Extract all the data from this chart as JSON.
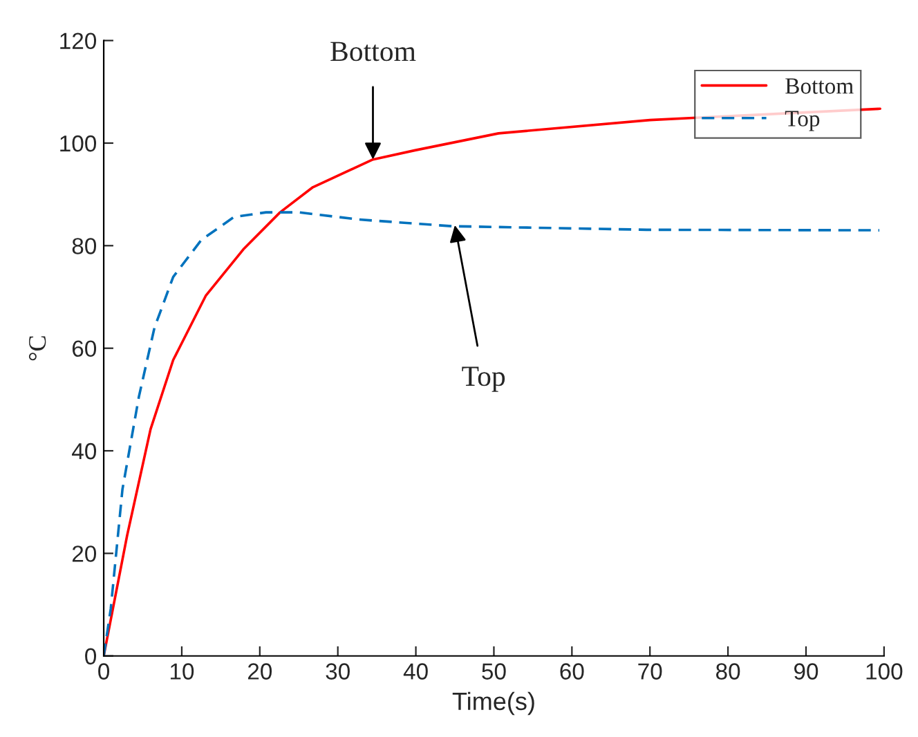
{
  "chart_data": {
    "type": "line",
    "xlabel": "Time(s)",
    "ylabel": "°C",
    "xlim": [
      0,
      100
    ],
    "ylim": [
      0,
      120
    ],
    "xticks": [
      0,
      10,
      20,
      30,
      40,
      50,
      60,
      70,
      80,
      90,
      100
    ],
    "yticks": [
      0,
      20,
      40,
      60,
      80,
      100,
      120
    ],
    "grid": false,
    "legend": "top right",
    "marker": "none",
    "series": [
      {
        "name": "Bottom",
        "color": "#ff0000",
        "line_style": "solid",
        "x": [
          0,
          3,
          6,
          8.9,
          13.1,
          17.9,
          22.6,
          26.8,
          34.5,
          39.9,
          50.6,
          70,
          99.5
        ],
        "values": [
          0,
          23.5,
          44.2,
          57.7,
          70.3,
          79.3,
          86.5,
          91.4,
          96.8,
          98.6,
          101.9,
          104.5,
          106.7
        ]
      },
      {
        "name": "Top",
        "color": "#0072bd",
        "line_style": "dashed",
        "x": [
          0,
          0.9,
          2.4,
          4.5,
          6.5,
          8.9,
          12.5,
          16.7,
          20.8,
          25,
          32.7,
          44.6,
          69.6,
          99.4
        ],
        "values": [
          0,
          9.2,
          32.5,
          50.5,
          64,
          73.9,
          81.1,
          85.6,
          86.5,
          86.5,
          85.1,
          83.8,
          83.1,
          83
        ]
      }
    ],
    "annotations": [
      {
        "text": "Bottom",
        "x": 34.5,
        "y": 96.8
      },
      {
        "text": "Top",
        "x": 45,
        "y": 84
      }
    ]
  }
}
